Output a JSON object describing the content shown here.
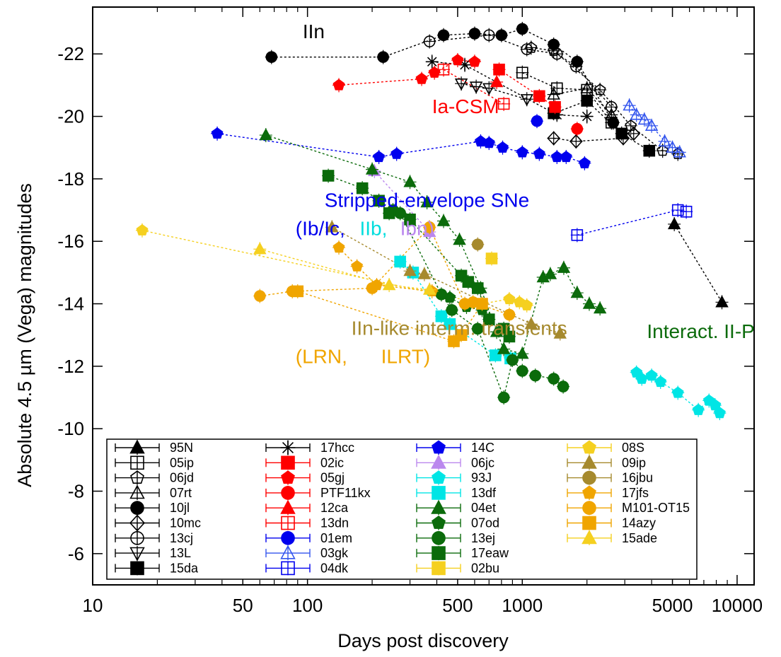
{
  "chart_data": {
    "type": "scatter",
    "xlabel": "Days post discovery",
    "ylabel": "Absolute 4.5 µm (Vega) magnitudes",
    "xscale": "log",
    "xlim": [
      10,
      12000
    ],
    "ylim": [
      -5,
      -23.5
    ],
    "y_inverted": true,
    "xticks": [
      10,
      50,
      100,
      500,
      1000,
      5000,
      10000
    ],
    "yticks": [
      -6,
      -8,
      -10,
      -12,
      -14,
      -16,
      -18,
      -20,
      -22
    ],
    "legend_placement": "bottom",
    "annotations": [
      {
        "text": "IIn",
        "color": "#000000",
        "x": 95,
        "y": -22.5
      },
      {
        "text": "Ia-CSM",
        "color": "#ff0000",
        "x": 380,
        "y": -20.1
      },
      {
        "text": "Stripped-envelope SNe",
        "color": "#0000ee",
        "x": 120,
        "y": -17.1
      },
      {
        "text": "(Ib/Ic,",
        "color": "#0000ee",
        "x": 88,
        "y": -16.2
      },
      {
        "text": "IIb,",
        "color": "#00dddd",
        "x": 175,
        "y": -16.2
      },
      {
        "text": "Ibn)",
        "color": "#bb88ee",
        "x": 270,
        "y": -16.2
      },
      {
        "text": "IIn-like interm. transients",
        "color": "#a68a2e",
        "x": 160,
        "y": -13.0
      },
      {
        "text": "(LRN,",
        "color": "#f0a500",
        "x": 88,
        "y": -12.1
      },
      {
        "text": "ILRT)",
        "color": "#f0a500",
        "x": 220,
        "y": -12.1
      },
      {
        "text": "Interact. II-P",
        "color": "#0b6b0b",
        "x": 3800,
        "y": -12.9
      }
    ],
    "series": [
      {
        "name": "95N",
        "color": "#000000",
        "marker": "triangle",
        "filled": true,
        "points": [
          [
            5100,
            -16.55
          ],
          [
            8500,
            -14.05
          ]
        ]
      },
      {
        "name": "05ip",
        "color": "#000000",
        "marker": "square",
        "filled": false,
        "points": [
          [
            1000,
            -21.4
          ],
          [
            1450,
            -20.9
          ],
          [
            2000,
            -20.85
          ],
          [
            2600,
            -19.8
          ]
        ]
      },
      {
        "name": "06jd",
        "color": "#000000",
        "marker": "pentagon",
        "filled": false,
        "points": [
          [
            1100,
            -22.2
          ],
          [
            1400,
            -22.1
          ],
          [
            2300,
            -20.85
          ],
          [
            3200,
            -19.7
          ],
          [
            4500,
            -18.9
          ],
          [
            5300,
            -18.8
          ]
        ]
      },
      {
        "name": "07rt",
        "color": "#000000",
        "marker": "triangle",
        "filled": false,
        "points": [
          [
            1400,
            -20.7
          ],
          [
            2000,
            -20.9
          ],
          [
            2600,
            -20.05
          ]
        ]
      },
      {
        "name": "10jl",
        "color": "#000000",
        "marker": "circle",
        "filled": true,
        "points": [
          [
            68,
            -21.9
          ],
          [
            225,
            -21.9
          ],
          [
            430,
            -22.6
          ],
          [
            600,
            -22.65
          ],
          [
            800,
            -22.6
          ],
          [
            1000,
            -22.8
          ],
          [
            1400,
            -22.3
          ],
          [
            1800,
            -21.75
          ],
          [
            2650,
            -19.8
          ]
        ]
      },
      {
        "name": "10mc",
        "color": "#000000",
        "marker": "diamond",
        "filled": false,
        "points": [
          [
            1400,
            -19.3
          ],
          [
            1780,
            -19.2
          ],
          [
            2950,
            -19.3
          ],
          [
            3300,
            -19.45
          ]
        ]
      },
      {
        "name": "13cj",
        "color": "#000000",
        "marker": "circle",
        "filled": false,
        "points": [
          [
            370,
            -22.4
          ],
          [
            700,
            -22.6
          ],
          [
            1050,
            -22.15
          ],
          [
            1450,
            -22.0
          ],
          [
            1780,
            -21.6
          ],
          [
            2600,
            -20.3
          ]
        ]
      },
      {
        "name": "13L",
        "color": "#000000",
        "marker": "triangledown",
        "filled": false,
        "points": [
          [
            520,
            -21.05
          ],
          [
            610,
            -20.95
          ],
          [
            700,
            -20.9
          ],
          [
            1050,
            -20.55
          ]
        ]
      },
      {
        "name": "15da",
        "color": "#000000",
        "marker": "square",
        "filled": true,
        "points": [
          [
            1400,
            -20.1
          ],
          [
            2000,
            -20.5
          ],
          [
            2900,
            -19.45
          ],
          [
            3900,
            -18.9
          ]
        ]
      },
      {
        "name": "17hcc",
        "color": "#000000",
        "marker": "star",
        "filled": false,
        "points": [
          [
            380,
            -21.75
          ],
          [
            540,
            -21.65
          ],
          [
            1450,
            -20.05
          ],
          [
            2000,
            -20.0
          ]
        ]
      },
      {
        "name": "02ic",
        "color": "#ff0000",
        "marker": "square",
        "filled": true,
        "points": [
          [
            780,
            -21.5
          ],
          [
            1200,
            -20.65
          ],
          [
            1420,
            -20.3
          ]
        ]
      },
      {
        "name": "05gj",
        "color": "#ff0000",
        "marker": "pentagon",
        "filled": true,
        "points": [
          [
            140,
            -21.0
          ],
          [
            340,
            -21.2
          ],
          [
            390,
            -21.4
          ],
          [
            500,
            -21.8
          ],
          [
            600,
            -21.75
          ]
        ]
      },
      {
        "name": "PTF11kx",
        "color": "#ff0000",
        "marker": "circle",
        "filled": true,
        "points": [
          [
            1800,
            -19.6
          ]
        ]
      },
      {
        "name": "12ca",
        "color": "#ff0000",
        "marker": "triangle",
        "filled": true,
        "points": [
          [
            760,
            -21.1
          ]
        ]
      },
      {
        "name": "13dn",
        "color": "#ff0000",
        "marker": "square",
        "filled": false,
        "points": [
          [
            430,
            -21.5
          ],
          [
            820,
            -20.4
          ]
        ]
      },
      {
        "name": "01em",
        "color": "#0000ee",
        "marker": "circle",
        "filled": true,
        "points": [
          [
            1170,
            -19.85
          ]
        ]
      },
      {
        "name": "03gk",
        "color": "#3355ee",
        "marker": "triangle",
        "filled": false,
        "points": [
          [
            3150,
            -20.35
          ],
          [
            3400,
            -20.05
          ],
          [
            3700,
            -19.9
          ],
          [
            4000,
            -19.7
          ],
          [
            4600,
            -19.2
          ],
          [
            5000,
            -19.0
          ],
          [
            5400,
            -18.85
          ]
        ]
      },
      {
        "name": "04dk",
        "color": "#0000ee",
        "marker": "square",
        "filled": false,
        "points": [
          [
            1800,
            -16.2
          ],
          [
            5300,
            -17.0
          ],
          [
            5800,
            -16.95
          ]
        ]
      },
      {
        "name": "14C",
        "color": "#0000ee",
        "marker": "pentagon",
        "filled": true,
        "points": [
          [
            38,
            -19.45
          ],
          [
            215,
            -18.7
          ],
          [
            260,
            -18.8
          ],
          [
            640,
            -19.2
          ],
          [
            700,
            -19.15
          ],
          [
            810,
            -19.0
          ],
          [
            1000,
            -18.85
          ],
          [
            1200,
            -18.8
          ],
          [
            1450,
            -18.7
          ],
          [
            1600,
            -18.7
          ],
          [
            1950,
            -18.5
          ]
        ]
      },
      {
        "name": "06jc",
        "color": "#bb88ee",
        "marker": "triangle",
        "filled": true,
        "points": [
          [
            205,
            -18.25
          ],
          [
            370,
            -16.3
          ]
        ]
      },
      {
        "name": "93J",
        "color": "#00e5e5",
        "marker": "pentagon",
        "filled": true,
        "points": [
          [
            3400,
            -11.8
          ],
          [
            3600,
            -11.6
          ],
          [
            4000,
            -11.7
          ],
          [
            4400,
            -11.5
          ],
          [
            5300,
            -11.15
          ],
          [
            6600,
            -10.6
          ],
          [
            7400,
            -10.9
          ],
          [
            7900,
            -10.75
          ],
          [
            8300,
            -10.5
          ]
        ]
      },
      {
        "name": "13df",
        "color": "#00e5e5",
        "marker": "square",
        "filled": true,
        "points": [
          [
            270,
            -15.35
          ],
          [
            310,
            -15.0
          ],
          [
            420,
            -13.6
          ],
          [
            460,
            -13.35
          ],
          [
            750,
            -12.35
          ],
          [
            880,
            -12.25
          ]
        ]
      },
      {
        "name": "04et",
        "color": "#0b6b0b",
        "marker": "triangle",
        "filled": true,
        "points": [
          [
            64,
            -19.4
          ],
          [
            200,
            -18.3
          ],
          [
            300,
            -17.9
          ],
          [
            360,
            -17.25
          ],
          [
            430,
            -16.65
          ],
          [
            510,
            -16.05
          ],
          [
            640,
            -14.5
          ],
          [
            760,
            -13.1
          ],
          [
            820,
            -12.55
          ],
          [
            1000,
            -12.4
          ],
          [
            1250,
            -14.85
          ],
          [
            1350,
            -14.95
          ],
          [
            1560,
            -15.15
          ],
          [
            1800,
            -14.35
          ],
          [
            2050,
            -14.0
          ],
          [
            2300,
            -13.85
          ]
        ]
      },
      {
        "name": "07od",
        "color": "#0b6b0b",
        "marker": "pentagon",
        "filled": true,
        "points": [
          [
            460,
            -14.2
          ],
          [
            550,
            -13.9
          ],
          [
            650,
            -13.8
          ]
        ]
      },
      {
        "name": "13ej",
        "color": "#0b6b0b",
        "marker": "circle",
        "filled": true,
        "points": [
          [
            250,
            -17.0
          ],
          [
            270,
            -16.9
          ],
          [
            420,
            -14.3
          ],
          [
            470,
            -13.8
          ],
          [
            620,
            -13.2
          ],
          [
            820,
            -11.0
          ],
          [
            900,
            -12.2
          ],
          [
            1000,
            -11.85
          ],
          [
            1150,
            -11.7
          ],
          [
            1400,
            -11.6
          ],
          [
            1550,
            -11.35
          ]
        ]
      },
      {
        "name": "17eaw",
        "color": "#0b6b0b",
        "marker": "square",
        "filled": true,
        "points": [
          [
            125,
            -18.1
          ],
          [
            180,
            -17.7
          ],
          [
            215,
            -17.3
          ],
          [
            240,
            -16.9
          ],
          [
            300,
            -16.7
          ],
          [
            520,
            -14.9
          ],
          [
            560,
            -14.7
          ],
          [
            620,
            -14.5
          ],
          [
            700,
            -13.5
          ],
          [
            820,
            -13.2
          ],
          [
            870,
            -12.95
          ]
        ]
      },
      {
        "name": "02bu",
        "color": "#f5d020",
        "marker": "square",
        "filled": true,
        "points": [
          [
            720,
            -15.45
          ]
        ]
      },
      {
        "name": "08S",
        "color": "#f5d020",
        "marker": "pentagon",
        "filled": true,
        "points": [
          [
            17,
            -16.35
          ],
          [
            650,
            -14.0
          ],
          [
            870,
            -14.15
          ],
          [
            970,
            -14.05
          ],
          [
            1050,
            -13.95
          ]
        ]
      },
      {
        "name": "09ip",
        "color": "#a68a2e",
        "marker": "triangle",
        "filled": true,
        "points": [
          [
            130,
            -16.45
          ],
          [
            300,
            -15.05
          ],
          [
            350,
            -14.95
          ],
          [
            1100,
            -13.35
          ],
          [
            1500,
            -13.05
          ]
        ]
      },
      {
        "name": "16jbu",
        "color": "#a68a2e",
        "marker": "circle",
        "filled": true,
        "points": [
          [
            620,
            -15.9
          ]
        ]
      },
      {
        "name": "17jfs",
        "color": "#f0a500",
        "marker": "pentagon",
        "filled": true,
        "points": [
          [
            140,
            -15.8
          ],
          [
            170,
            -15.2
          ],
          [
            210,
            -14.6
          ],
          [
            380,
            -14.4
          ]
        ]
      },
      {
        "name": "M101-OT15",
        "color": "#f0a500",
        "marker": "circle",
        "filled": true,
        "points": [
          [
            60,
            -14.25
          ],
          [
            85,
            -14.4
          ],
          [
            200,
            -14.5
          ],
          [
            370,
            -16.45
          ],
          [
            540,
            -14.0
          ],
          [
            590,
            -14.05
          ],
          [
            870,
            -13.65
          ]
        ]
      },
      {
        "name": "14azy",
        "color": "#f0a500",
        "marker": "square",
        "filled": true,
        "points": [
          [
            90,
            -14.4
          ],
          [
            480,
            -12.8
          ],
          [
            520,
            -13.0
          ],
          [
            650,
            -14.0
          ]
        ]
      },
      {
        "name": "15ade",
        "color": "#f5d020",
        "marker": "triangle",
        "filled": true,
        "points": [
          [
            60,
            -15.75
          ],
          [
            240,
            -14.6
          ],
          [
            370,
            -14.45
          ]
        ]
      }
    ]
  }
}
